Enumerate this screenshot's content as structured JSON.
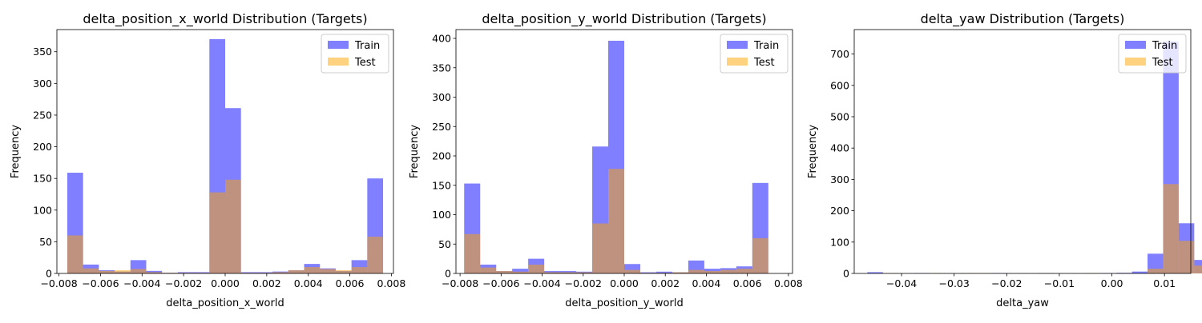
{
  "chart_data": [
    {
      "type": "bar",
      "title": "delta_position_x_world Distribution (Targets)",
      "xlabel": "delta_position_x_world",
      "ylabel": "Frequency",
      "xlim": [
        -0.0081,
        0.0081
      ],
      "ylim": [
        0,
        385
      ],
      "xticks": [
        {
          "value": -0.008,
          "label": "−0.008"
        },
        {
          "value": -0.006,
          "label": "−0.006"
        },
        {
          "value": -0.004,
          "label": "−0.004"
        },
        {
          "value": -0.002,
          "label": "−0.002"
        },
        {
          "value": 0.0,
          "label": "0.000"
        },
        {
          "value": 0.002,
          "label": "0.002"
        },
        {
          "value": 0.004,
          "label": "0.004"
        },
        {
          "value": 0.006,
          "label": "0.006"
        },
        {
          "value": 0.008,
          "label": "0.008"
        }
      ],
      "yticks": [
        {
          "value": 0,
          "label": "0"
        },
        {
          "value": 50,
          "label": "50"
        },
        {
          "value": 100,
          "label": "100"
        },
        {
          "value": 150,
          "label": "150"
        },
        {
          "value": 200,
          "label": "200"
        },
        {
          "value": 250,
          "label": "250"
        },
        {
          "value": 300,
          "label": "300"
        },
        {
          "value": 350,
          "label": "350"
        }
      ],
      "legend_position": "top-right",
      "bin_start": -0.0076,
      "bin_width": 0.00076,
      "series": [
        {
          "name": "Train",
          "color": "#0000ff",
          "opacity": 0.5,
          "values": [
            159,
            14,
            5,
            3,
            21,
            4,
            1,
            2,
            2,
            370,
            261,
            2,
            2,
            3,
            5,
            15,
            8,
            4,
            21,
            150
          ]
        },
        {
          "name": "Test",
          "color": "#ffa500",
          "opacity": 0.5,
          "values": [
            60,
            8,
            4,
            5,
            7,
            2,
            1,
            1,
            1,
            128,
            148,
            1,
            1,
            2,
            5,
            10,
            7,
            5,
            10,
            58
          ]
        }
      ]
    },
    {
      "type": "bar",
      "title": "delta_position_y_world Distribution (Targets)",
      "xlabel": "delta_position_y_world",
      "ylabel": "Frequency",
      "xlim": [
        -0.0082,
        0.0082
      ],
      "ylim": [
        0,
        415
      ],
      "xticks": [
        {
          "value": -0.008,
          "label": "−0.008"
        },
        {
          "value": -0.006,
          "label": "−0.006"
        },
        {
          "value": -0.004,
          "label": "−0.004"
        },
        {
          "value": -0.002,
          "label": "−0.002"
        },
        {
          "value": 0.0,
          "label": "0.000"
        },
        {
          "value": 0.002,
          "label": "0.002"
        },
        {
          "value": 0.004,
          "label": "0.004"
        },
        {
          "value": 0.006,
          "label": "0.006"
        },
        {
          "value": 0.008,
          "label": "0.008"
        }
      ],
      "yticks": [
        {
          "value": 0,
          "label": "0"
        },
        {
          "value": 50,
          "label": "50"
        },
        {
          "value": 100,
          "label": "100"
        },
        {
          "value": 150,
          "label": "150"
        },
        {
          "value": 200,
          "label": "200"
        },
        {
          "value": 250,
          "label": "250"
        },
        {
          "value": 300,
          "label": "300"
        },
        {
          "value": 350,
          "label": "350"
        },
        {
          "value": 400,
          "label": "400"
        }
      ],
      "legend_position": "top-right",
      "bin_start": -0.0078,
      "bin_width": 0.00078,
      "series": [
        {
          "name": "Train",
          "color": "#0000ff",
          "opacity": 0.5,
          "values": [
            153,
            15,
            4,
            8,
            25,
            4,
            4,
            3,
            216,
            396,
            16,
            2,
            3,
            2,
            22,
            8,
            9,
            12,
            154
          ]
        },
        {
          "name": "Test",
          "color": "#ffa500",
          "opacity": 0.5,
          "values": [
            67,
            10,
            4,
            3,
            15,
            2,
            2,
            2,
            85,
            178,
            6,
            1,
            1,
            2,
            6,
            4,
            6,
            8,
            60
          ]
        }
      ]
    },
    {
      "type": "bar",
      "title": "delta_yaw Distribution (Targets)",
      "xlabel": "delta_yaw",
      "ylabel": "Frequency",
      "xlim": [
        -0.049,
        0.015
      ],
      "ylim": [
        0,
        778
      ],
      "xticks": [
        {
          "value": -0.04,
          "label": "−0.04"
        },
        {
          "value": -0.03,
          "label": "−0.03"
        },
        {
          "value": -0.02,
          "label": "−0.02"
        },
        {
          "value": -0.01,
          "label": "−0.01"
        },
        {
          "value": 0.0,
          "label": "0.00"
        },
        {
          "value": 0.01,
          "label": "0.01"
        }
      ],
      "yticks": [
        {
          "value": 0,
          "label": "0"
        },
        {
          "value": 100,
          "label": "100"
        },
        {
          "value": 200,
          "label": "200"
        },
        {
          "value": 300,
          "label": "300"
        },
        {
          "value": 400,
          "label": "400"
        },
        {
          "value": 500,
          "label": "500"
        },
        {
          "value": 600,
          "label": "600"
        },
        {
          "value": 700,
          "label": "700"
        }
      ],
      "legend_position": "top-right",
      "bin_start": -0.0465,
      "bin_width": 0.00296,
      "series": [
        {
          "name": "Train",
          "color": "#0000ff",
          "opacity": 0.5,
          "values": [
            4,
            0,
            0,
            1,
            0,
            0,
            0,
            0,
            1,
            0,
            0,
            1,
            0,
            0,
            0,
            1,
            2,
            6,
            63,
            740,
            160,
            43,
            22,
            4
          ]
        },
        {
          "name": "Test",
          "color": "#ffa500",
          "opacity": 0.5,
          "values": [
            0,
            1,
            0,
            0,
            1,
            0,
            1,
            1,
            0,
            0,
            0,
            1,
            0,
            0,
            1,
            0,
            1,
            0,
            15,
            285,
            104,
            25,
            14,
            0
          ]
        }
      ]
    }
  ]
}
